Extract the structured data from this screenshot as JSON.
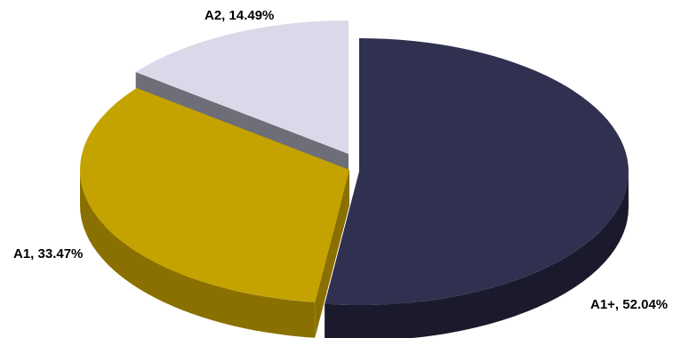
{
  "chart_data": {
    "type": "pie",
    "style": "3d-exploded",
    "categories": [
      "A1+",
      "A1",
      "A2"
    ],
    "values": [
      52.04,
      33.47,
      14.49
    ],
    "labels": [
      "A1+, 52.04%",
      "A1, 33.47%",
      "A2, 14.49%"
    ],
    "colors": {
      "A1+": "#303050",
      "A1": "#c4a300",
      "A2": "#d9d9ea"
    },
    "side_colors": {
      "A1+": "#1a1a2c",
      "A1": "#8a7000",
      "A2": "#6e6e78"
    },
    "legend": "none"
  }
}
